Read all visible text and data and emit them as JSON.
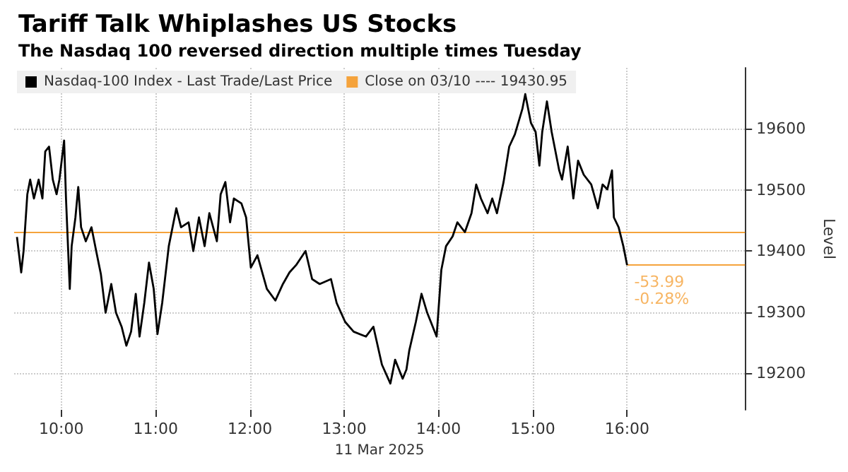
{
  "chart_data": {
    "type": "line",
    "title": "Tariff Talk Whiplashes US Stocks",
    "subtitle": "The Nasdaq 100 reversed direction multiple times Tuesday",
    "xlabel": "11 Mar 2025",
    "ylabel": "Level",
    "series": [
      {
        "name": "Nasdaq-100 Index - Last Trade/Last Price",
        "color": "#000000",
        "x": [
          9.53,
          9.575,
          9.6,
          9.64,
          9.67,
          9.71,
          9.76,
          9.8,
          9.83,
          9.87,
          9.91,
          9.95,
          9.98,
          10.03,
          10.05,
          10.09,
          10.11,
          10.15,
          10.18,
          10.21,
          10.26,
          10.32,
          10.37,
          10.42,
          10.47,
          10.53,
          10.58,
          10.64,
          10.69,
          10.74,
          10.79,
          10.83,
          10.88,
          10.93,
          10.98,
          11.02,
          11.07,
          11.14,
          11.22,
          11.27,
          11.35,
          11.4,
          11.46,
          11.52,
          11.57,
          11.65,
          11.69,
          11.74,
          11.79,
          11.83,
          11.91,
          11.96,
          12.01,
          12.08,
          12.18,
          12.27,
          12.35,
          12.42,
          12.49,
          12.59,
          12.66,
          12.74,
          12.86,
          12.92,
          13.01,
          13.1,
          13.23,
          13.31,
          13.4,
          13.49,
          13.54,
          13.62,
          13.66,
          13.69,
          13.76,
          13.82,
          13.88,
          13.98,
          14.03,
          14.08,
          14.15,
          14.2,
          14.28,
          14.35,
          14.4,
          14.45,
          14.52,
          14.57,
          14.62,
          14.69,
          14.75,
          14.81,
          14.89,
          14.92,
          14.98,
          15.03,
          15.07,
          15.1,
          15.15,
          15.2,
          15.28,
          15.31,
          15.37,
          15.43,
          15.48,
          15.54,
          15.62,
          15.69,
          15.74,
          15.79,
          15.84,
          15.86,
          15.91,
          15.96,
          16.0
        ],
        "values": [
          19423,
          19365,
          19400,
          19493,
          19517,
          19486,
          19517,
          19486,
          19563,
          19571,
          19517,
          19493,
          19517,
          19581,
          19486,
          19338,
          19408,
          19455,
          19505,
          19439,
          19416,
          19439,
          19400,
          19362,
          19299,
          19346,
          19299,
          19276,
          19245,
          19268,
          19330,
          19260,
          19315,
          19381,
          19338,
          19264,
          19315,
          19408,
          19470,
          19439,
          19447,
          19400,
          19455,
          19408,
          19462,
          19416,
          19493,
          19513,
          19447,
          19486,
          19478,
          19455,
          19373,
          19393,
          19338,
          19319,
          19346,
          19365,
          19377,
          19400,
          19354,
          19346,
          19354,
          19315,
          19284,
          19268,
          19260,
          19276,
          19214,
          19183,
          19222,
          19191,
          19206,
          19237,
          19284,
          19330,
          19299,
          19260,
          19369,
          19408,
          19424,
          19447,
          19431,
          19462,
          19509,
          19486,
          19462,
          19486,
          19462,
          19513,
          19571,
          19591,
          19633,
          19657,
          19610,
          19595,
          19540,
          19595,
          19645,
          19595,
          19532,
          19517,
          19571,
          19486,
          19548,
          19525,
          19509,
          19470,
          19509,
          19501,
          19532,
          19455,
          19439,
          19408,
          19377
        ]
      }
    ],
    "xlim": [
      9.5,
      17.25
    ],
    "xticks": [
      {
        "value": 10,
        "label": "10:00"
      },
      {
        "value": 11,
        "label": "11:00"
      },
      {
        "value": 12,
        "label": "12:00"
      },
      {
        "value": 13,
        "label": "13:00"
      },
      {
        "value": 14,
        "label": "14:00"
      },
      {
        "value": 15,
        "label": "15:00"
      },
      {
        "value": 16,
        "label": "16:00"
      }
    ],
    "ylim": [
      19140,
      19700
    ],
    "yticks": [
      19200,
      19300,
      19400,
      19500,
      19600
    ],
    "ref_lines": [
      {
        "axis": "y",
        "value": 19430.95,
        "label": "Close on 03/10 ---- 19430.95",
        "color": "#f5a33c"
      }
    ],
    "annotations": [
      {
        "text": "-53.99",
        "x": 16.0,
        "y": 19376.96
      },
      {
        "text": "-0.28%",
        "x": 16.0,
        "y": 19376.96
      }
    ],
    "grid": true,
    "legend": "top left",
    "marker": "none",
    "line_style": "solid"
  }
}
